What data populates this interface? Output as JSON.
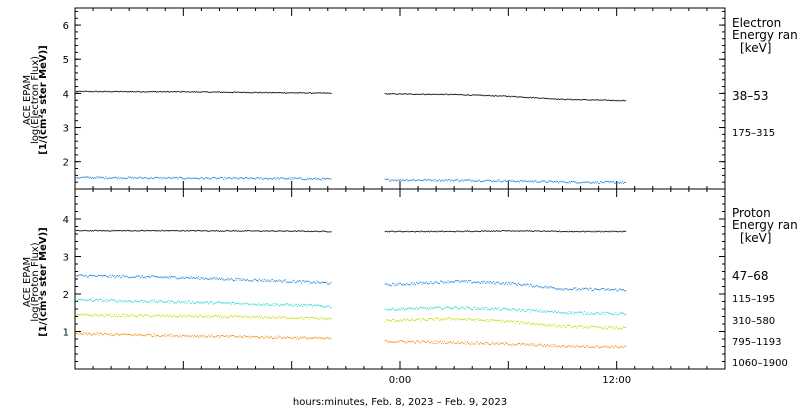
{
  "xlabel": "hours:minutes, Feb.  8, 2023 – Feb.  9, 2023",
  "panels": [
    {
      "id": "electron",
      "ylabel_lines": [
        "ACE EPAM",
        "log(Electron Flux)",
        "[1/(cm²s ster MeV)]"
      ],
      "legend_title": [
        "Electron",
        "Energy ran"
      ],
      "legend_unit": "[keV]",
      "yticks": [
        "2",
        "3",
        "4",
        "5",
        "6"
      ],
      "xticks": [
        "0:00",
        "12:00"
      ],
      "series_labels": [
        {
          "text": "38–53",
          "color": "#000000"
        },
        {
          "text": "175–315",
          "color": "#1a7fd4"
        }
      ]
    },
    {
      "id": "proton",
      "ylabel_lines": [
        "ACE EPAM",
        "log(Proton Flux)",
        "[1/(cm²s ster MeV)]"
      ],
      "legend_title": [
        "Proton",
        "Energy ran"
      ],
      "legend_unit": "[keV]",
      "yticks": [
        "1",
        "2",
        "3",
        "4"
      ],
      "xticks": [
        "0:00",
        "12:00"
      ],
      "series_labels": [
        {
          "text": "47–68",
          "color": "#000000"
        },
        {
          "text": "115–195",
          "color": "#1a7fd4"
        },
        {
          "text": "310–580",
          "color": "#22d8d0"
        },
        {
          "text": "795–1193",
          "color": "#c8d800"
        },
        {
          "text": "1060–1900",
          "color": "#f08a10"
        }
      ]
    }
  ],
  "chart_data": [
    {
      "type": "scatter",
      "title": "",
      "xlabel": "hours:minutes, Feb.  8, 2023 – Feb.  9, 2023",
      "ylabel": "ACE EPAM log(Electron Flux) [1/(cm²s ster MeV)]",
      "xlim_hours": [
        -18,
        18
      ],
      "ylim": [
        1.2,
        6.5
      ],
      "data_gap_hours": [
        -3.8,
        -0.9
      ],
      "data_end_hours": 12.5,
      "series": [
        {
          "name": "38–53",
          "color": "#000000",
          "x": [
            -18,
            -12,
            -6,
            -3.8,
            -0.9,
            3,
            6,
            9,
            12.5
          ],
          "y": [
            4.07,
            4.06,
            4.03,
            4.02,
            4.0,
            3.98,
            3.93,
            3.84,
            3.8
          ]
        },
        {
          "name": "175–315",
          "color": "#1a7fd4",
          "x": [
            -18,
            -12,
            -6,
            -3.8,
            -0.9,
            3,
            6,
            9,
            12.5
          ],
          "y": [
            1.55,
            1.53,
            1.52,
            1.5,
            1.48,
            1.47,
            1.45,
            1.42,
            1.4
          ]
        }
      ]
    },
    {
      "type": "scatter",
      "title": "",
      "xlabel": "hours:minutes, Feb.  8, 2023 – Feb.  9, 2023",
      "ylabel": "ACE EPAM log(Proton Flux) [1/(cm²s ster MeV)]",
      "xlim_hours": [
        -18,
        18
      ],
      "ylim": [
        0,
        4.8
      ],
      "data_gap_hours": [
        -3.8,
        -0.9
      ],
      "data_end_hours": 12.5,
      "series": [
        {
          "name": "47–68",
          "color": "#000000",
          "x": [
            -18,
            -12,
            -6,
            -3.8,
            -0.9,
            3,
            6,
            9,
            12.5
          ],
          "y": [
            3.7,
            3.7,
            3.69,
            3.68,
            3.68,
            3.68,
            3.7,
            3.68,
            3.68
          ]
        },
        {
          "name": "115–195",
          "color": "#1a7fd4",
          "x": [
            -18,
            -12,
            -6,
            -3.8,
            -0.9,
            3,
            6,
            9,
            12.5
          ],
          "y": [
            2.5,
            2.45,
            2.35,
            2.3,
            2.25,
            2.35,
            2.3,
            2.15,
            2.12
          ]
        },
        {
          "name": "310–580",
          "color": "#22d8d0",
          "x": [
            -18,
            -12,
            -6,
            -3.8,
            -0.9,
            3,
            6,
            9,
            12.5
          ],
          "y": [
            1.85,
            1.8,
            1.72,
            1.68,
            1.6,
            1.65,
            1.6,
            1.52,
            1.48
          ]
        },
        {
          "name": "795–1193",
          "color": "#c8d800",
          "x": [
            -18,
            -12,
            -6,
            -3.8,
            -0.9,
            3,
            6,
            9,
            12.5
          ],
          "y": [
            1.45,
            1.42,
            1.38,
            1.35,
            1.3,
            1.35,
            1.28,
            1.15,
            1.1
          ]
        },
        {
          "name": "1060–1900",
          "color": "#f08a10",
          "x": [
            -18,
            -12,
            -6,
            -3.8,
            -0.9,
            3,
            6,
            9,
            12.5
          ],
          "y": [
            0.95,
            0.9,
            0.85,
            0.82,
            0.75,
            0.72,
            0.68,
            0.62,
            0.6
          ]
        }
      ]
    }
  ]
}
